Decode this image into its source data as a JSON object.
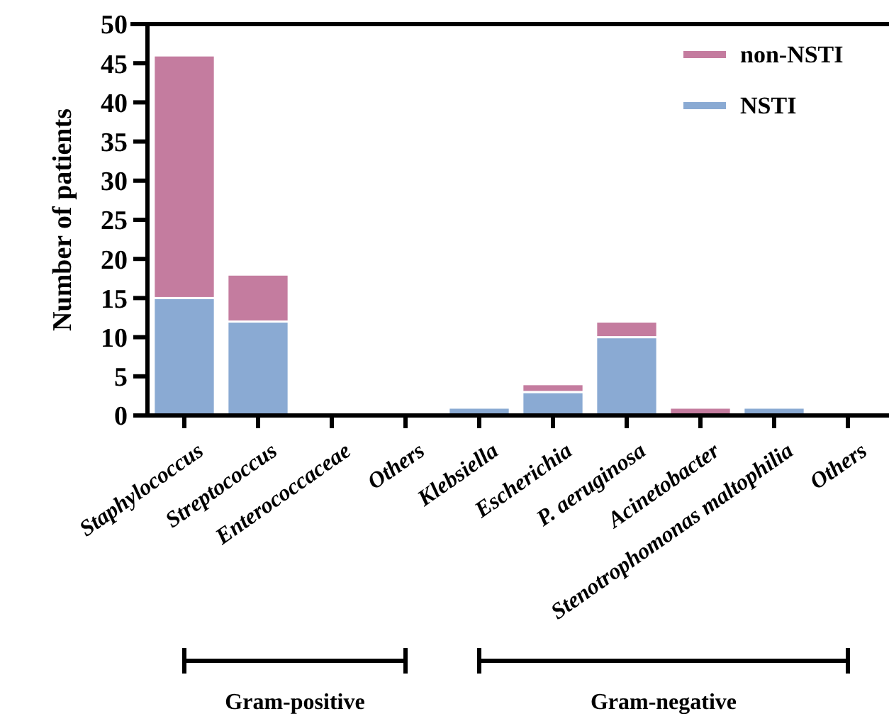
{
  "chart_data": {
    "type": "bar",
    "stacked": true,
    "ylabel": "Number of patients",
    "categories": [
      "Staphylococcus",
      "Streptococcus",
      "Enterococcaceae",
      "Others",
      "Klebsiella",
      "Escherichia",
      "P. aeruginosa",
      "Acinetobacter",
      "Stenotrophomonas maltophilia",
      "Others"
    ],
    "series": [
      {
        "name": "NSTI",
        "color": "#8aaad3",
        "values": [
          15,
          12,
          0,
          0,
          1,
          3,
          10,
          0,
          1,
          0
        ]
      },
      {
        "name": "non-NSTI",
        "color": "#c47c9f",
        "values": [
          31,
          6,
          0,
          0,
          0,
          1,
          2,
          1,
          0,
          0
        ]
      }
    ],
    "ylim": [
      0,
      50
    ],
    "yticks": [
      0,
      5,
      10,
      15,
      20,
      25,
      30,
      35,
      40,
      45,
      50
    ],
    "grid": false,
    "legend": "top right",
    "annotations": [
      "Gram-positive",
      "Gram-negative"
    ]
  }
}
